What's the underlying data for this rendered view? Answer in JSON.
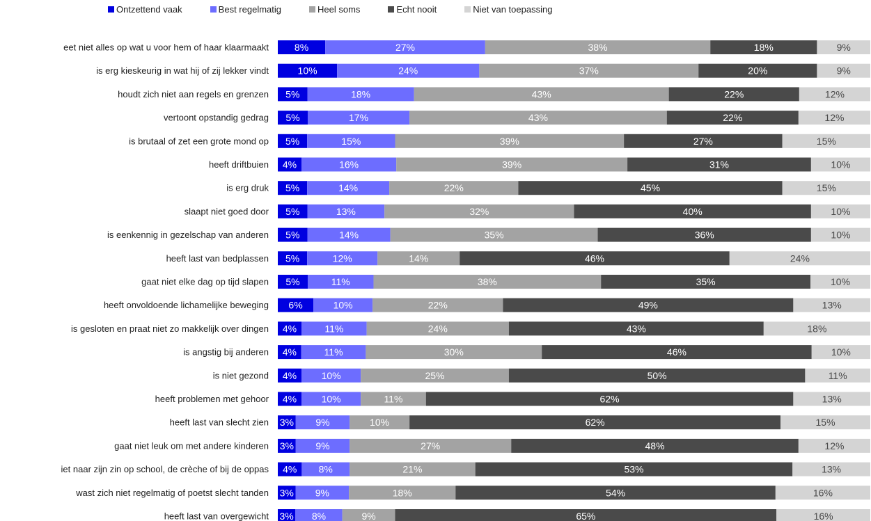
{
  "chart_data": {
    "type": "bar",
    "orientation": "horizontal",
    "stacked": "100%",
    "legend": "top",
    "grid": false,
    "series": [
      {
        "name": "Ontzettend vaak",
        "color": "#0000e0"
      },
      {
        "name": "Best regelmatig",
        "color": "#6d6dff"
      },
      {
        "name": "Heel soms",
        "color": "#a3a3a3"
      },
      {
        "name": "Echt nooit",
        "color": "#4a4a4a"
      },
      {
        "name": "Niet van toepassing",
        "color": "#d4d4d4"
      }
    ],
    "categories": [
      "eet niet alles op wat u voor hem of haar klaarmaakt",
      "is erg kieskeurig in wat hij of zij lekker vindt",
      "houdt zich niet aan regels en grenzen",
      "vertoont opstandig gedrag",
      "is brutaal of zet een grote mond op",
      "heeft driftbuien",
      "is erg druk",
      "slaapt niet goed door",
      "is eenkennig in gezelschap van anderen",
      "heeft last van bedplassen",
      "gaat niet elke dag op tijd slapen",
      "heeft onvoldoende lichamelijke beweging",
      "is gesloten en praat niet zo makkelijk over dingen",
      "is angstig bij anderen",
      "is niet gezond",
      "heeft problemen met gehoor",
      "heeft last van slecht zien",
      "gaat niet leuk om met andere kinderen",
      "iet naar zijn zin op school, de crèche of bij de oppas",
      "wast zich niet regelmatig of poetst slecht tanden",
      "heeft last van overgewicht"
    ],
    "values": [
      [
        8,
        27,
        38,
        18,
        9
      ],
      [
        10,
        24,
        37,
        20,
        9
      ],
      [
        5,
        18,
        43,
        22,
        12
      ],
      [
        5,
        17,
        43,
        22,
        12
      ],
      [
        5,
        15,
        39,
        27,
        15
      ],
      [
        4,
        16,
        39,
        31,
        10
      ],
      [
        5,
        14,
        22,
        45,
        15
      ],
      [
        5,
        13,
        32,
        40,
        10
      ],
      [
        5,
        14,
        35,
        36,
        10
      ],
      [
        5,
        12,
        14,
        46,
        24
      ],
      [
        5,
        11,
        38,
        35,
        10
      ],
      [
        6,
        10,
        22,
        49,
        13
      ],
      [
        4,
        11,
        24,
        43,
        18
      ],
      [
        4,
        11,
        30,
        46,
        10
      ],
      [
        4,
        10,
        25,
        50,
        11
      ],
      [
        4,
        10,
        11,
        62,
        13
      ],
      [
        3,
        9,
        10,
        62,
        15
      ],
      [
        3,
        9,
        27,
        48,
        12
      ],
      [
        4,
        8,
        21,
        53,
        13
      ],
      [
        3,
        9,
        18,
        54,
        16
      ],
      [
        3,
        8,
        9,
        65,
        16
      ]
    ],
    "value_suffix": "%"
  }
}
